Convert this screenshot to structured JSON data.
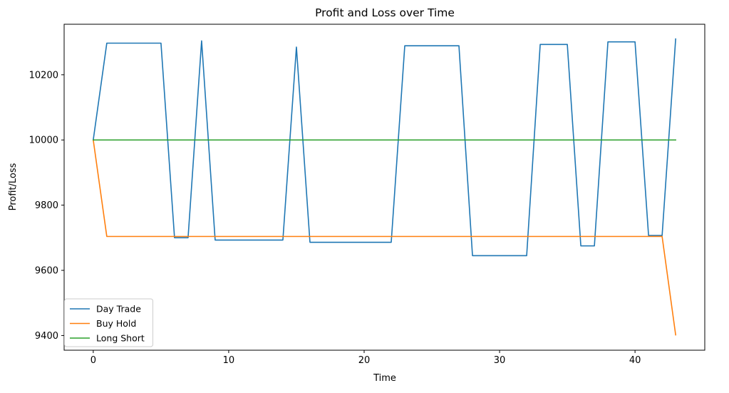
{
  "chart_data": {
    "type": "line",
    "title": "Profit and Loss over Time",
    "xlabel": "Time",
    "ylabel": "Profit/Loss",
    "xlim": [
      -2.15,
      45.15
    ],
    "ylim": [
      9355,
      10355
    ],
    "xticks": [
      0,
      10,
      20,
      30,
      40
    ],
    "yticks": [
      9400,
      9600,
      9800,
      10000,
      10200
    ],
    "grid": false,
    "legend_position": "lower-left",
    "x": [
      0,
      1,
      2,
      3,
      4,
      5,
      6,
      7,
      8,
      9,
      10,
      11,
      12,
      13,
      14,
      15,
      16,
      17,
      18,
      19,
      20,
      21,
      22,
      23,
      24,
      25,
      26,
      27,
      28,
      29,
      30,
      31,
      32,
      33,
      34,
      35,
      36,
      37,
      38,
      39,
      40,
      41,
      42,
      43
    ],
    "series": [
      {
        "name": "Day Trade",
        "color": "#1f77b4",
        "values": [
          10000,
          10297,
          10297,
          10297,
          10297,
          10297,
          9700,
          9700,
          10304,
          9693,
          9693,
          9693,
          9693,
          9693,
          9693,
          10285,
          9686,
          9686,
          9686,
          9686,
          9686,
          9686,
          9686,
          10289,
          10289,
          10289,
          10289,
          10289,
          9645,
          9645,
          9645,
          9645,
          9645,
          10293,
          10293,
          10293,
          9675,
          9675,
          10301,
          10301,
          10301,
          9707,
          9707,
          10310
        ]
      },
      {
        "name": "Buy Hold",
        "color": "#ff7f0e",
        "values": [
          10000,
          9704,
          9704,
          9704,
          9704,
          9704,
          9704,
          9704,
          9704,
          9704,
          9704,
          9704,
          9704,
          9704,
          9704,
          9704,
          9704,
          9704,
          9704,
          9704,
          9704,
          9704,
          9704,
          9704,
          9704,
          9704,
          9704,
          9704,
          9704,
          9704,
          9704,
          9704,
          9704,
          9704,
          9704,
          9704,
          9704,
          9704,
          9704,
          9704,
          9704,
          9704,
          9704,
          9402
        ]
      },
      {
        "name": "Long Short",
        "color": "#2ca02c",
        "values": [
          10000,
          10000,
          10000,
          10000,
          10000,
          10000,
          10000,
          10000,
          10000,
          10000,
          10000,
          10000,
          10000,
          10000,
          10000,
          10000,
          10000,
          10000,
          10000,
          10000,
          10000,
          10000,
          10000,
          10000,
          10000,
          10000,
          10000,
          10000,
          10000,
          10000,
          10000,
          10000,
          10000,
          10000,
          10000,
          10000,
          10000,
          10000,
          10000,
          10000,
          10000,
          10000,
          10000,
          10000
        ]
      }
    ]
  }
}
